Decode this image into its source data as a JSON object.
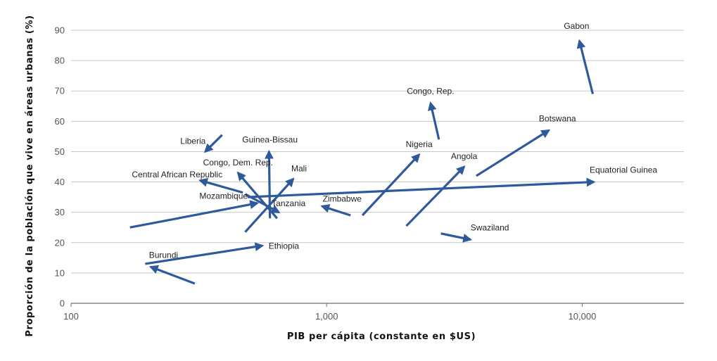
{
  "chart_data": {
    "type": "scatter",
    "subtype": "arrow-trajectory",
    "xlabel": "PIB per cápita (constante en $US)",
    "ylabel": "Proporción de la población que vive en áreas urbanas (%)",
    "x_scale": "log",
    "xlim": [
      100,
      25000
    ],
    "ylim": [
      0,
      90
    ],
    "x_ticks": [
      {
        "value": 100,
        "label": "100"
      },
      {
        "value": 1000,
        "label": "1,000"
      },
      {
        "value": 10000,
        "label": "10,000"
      }
    ],
    "y_ticks": [
      0,
      10,
      20,
      30,
      40,
      50,
      60,
      70,
      80,
      90
    ],
    "grid": "horizontal",
    "arrow_color": "#2E5A9C",
    "series": [
      {
        "name": "Gabon",
        "from": {
          "x": 11000,
          "y": 69
        },
        "to": {
          "x": 9750,
          "y": 86.5
        }
      },
      {
        "name": "Congo, Rep.",
        "from": {
          "x": 2750,
          "y": 54
        },
        "to": {
          "x": 2550,
          "y": 66
        }
      },
      {
        "name": "Botswana",
        "from": {
          "x": 3850,
          "y": 42
        },
        "to": {
          "x": 7400,
          "y": 57
        }
      },
      {
        "name": "Equatorial Guinea",
        "from": {
          "x": 490,
          "y": 35
        },
        "to": {
          "x": 11100,
          "y": 40
        }
      },
      {
        "name": "Nigeria",
        "from": {
          "x": 1380,
          "y": 29
        },
        "to": {
          "x": 2300,
          "y": 49
        }
      },
      {
        "name": "Angola",
        "from": {
          "x": 2050,
          "y": 25.5
        },
        "to": {
          "x": 3450,
          "y": 45
        }
      },
      {
        "name": "Swaziland",
        "from": {
          "x": 2800,
          "y": 23
        },
        "to": {
          "x": 3650,
          "y": 21
        }
      },
      {
        "name": "Zimbabwe",
        "from": {
          "x": 1240,
          "y": 29
        },
        "to": {
          "x": 960,
          "y": 32
        }
      },
      {
        "name": "Liberia",
        "from": {
          "x": 390,
          "y": 55.5
        },
        "to": {
          "x": 335,
          "y": 50
        }
      },
      {
        "name": "Guinea-Bissau",
        "from": {
          "x": 600,
          "y": 28
        },
        "to": {
          "x": 595,
          "y": 50
        }
      },
      {
        "name": "Congo, Dem. Rep.",
        "from": {
          "x": 640,
          "y": 28
        },
        "to": {
          "x": 450,
          "y": 43
        }
      },
      {
        "name": "Central African Republic",
        "from": {
          "x": 470,
          "y": 36.5
        },
        "to": {
          "x": 320,
          "y": 40.5
        }
      },
      {
        "name": "Mali",
        "from": {
          "x": 480,
          "y": 23.5
        },
        "to": {
          "x": 740,
          "y": 41
        }
      },
      {
        "name": "Tanzania",
        "from": {
          "x": 480,
          "y": 36
        },
        "to": {
          "x": 650,
          "y": 30
        }
      },
      {
        "name": "Mozambique",
        "from": {
          "x": 170,
          "y": 25
        },
        "to": {
          "x": 535,
          "y": 33
        }
      },
      {
        "name": "Ethiopia",
        "from": {
          "x": 195,
          "y": 13
        },
        "to": {
          "x": 560,
          "y": 19
        }
      },
      {
        "name": "Burundi",
        "from": {
          "x": 305,
          "y": 6.5
        },
        "to": {
          "x": 205,
          "y": 12
        }
      }
    ],
    "labels": [
      {
        "text": "Gabon",
        "x": 9500,
        "y": 90.5
      },
      {
        "text": "Congo, Rep.",
        "x": 2550,
        "y": 69
      },
      {
        "text": "Botswana",
        "x": 8000,
        "y": 60
      },
      {
        "text": "Equatorial Guinea",
        "x": 14500,
        "y": 43
      },
      {
        "text": "Nigeria",
        "x": 2300,
        "y": 51.5
      },
      {
        "text": "Angola",
        "x": 3450,
        "y": 47.5
      },
      {
        "text": "Swaziland",
        "x": 4350,
        "y": 24
      },
      {
        "text": "Zimbabwe",
        "x": 1150,
        "y": 33.5
      },
      {
        "text": "Liberia",
        "x": 300,
        "y": 52.5
      },
      {
        "text": "Guinea-Bissau",
        "x": 600,
        "y": 53
      },
      {
        "text": "Congo, Dem. Rep.",
        "x": 450,
        "y": 45.5
      },
      {
        "text": "Central African Republic",
        "x": 260,
        "y": 41.5
      },
      {
        "text": "Mali",
        "x": 780,
        "y": 43.5
      },
      {
        "text": "Tanzania",
        "x": 710,
        "y": 32
      },
      {
        "text": "Mozambique",
        "x": 395,
        "y": 34.5
      },
      {
        "text": "Ethiopia",
        "x": 680,
        "y": 18
      },
      {
        "text": "Burundi",
        "x": 230,
        "y": 15
      }
    ]
  }
}
